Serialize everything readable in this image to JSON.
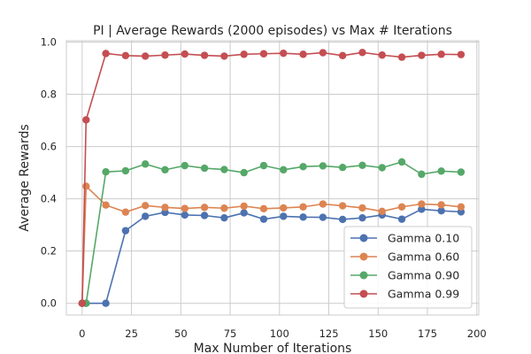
{
  "chart_data": {
    "type": "line",
    "title": "PI | Average Rewards (2000 episodes) vs Max # Iterations",
    "xlabel": "Max Number of Iterations",
    "ylabel": "Average Rewards",
    "xlim": [
      -8,
      201
    ],
    "ylim": [
      -0.045,
      1.005
    ],
    "xticks": [
      0,
      25,
      50,
      75,
      100,
      125,
      150,
      175,
      200
    ],
    "yticks": [
      0.0,
      0.2,
      0.4,
      0.6,
      0.8,
      1.0
    ],
    "xtick_labels": [
      "0",
      "25",
      "50",
      "75",
      "100",
      "125",
      "150",
      "175",
      "200"
    ],
    "ytick_labels": [
      "0.0",
      "0.2",
      "0.4",
      "0.6",
      "0.8",
      "1.0"
    ],
    "grid": true,
    "legend_position": "lower-right",
    "x": [
      0,
      2,
      12,
      22,
      32,
      42,
      52,
      62,
      72,
      82,
      92,
      102,
      112,
      122,
      132,
      142,
      152,
      162,
      172,
      182,
      192
    ],
    "series": [
      {
        "name": "Gamma 0.10",
        "color": "#4c72b0",
        "values": [
          0.0,
          0.0,
          0.0,
          0.278,
          0.333,
          0.348,
          0.338,
          0.336,
          0.327,
          0.346,
          0.322,
          0.333,
          0.33,
          0.329,
          0.321,
          0.327,
          0.338,
          0.322,
          0.36,
          0.354,
          0.35
        ]
      },
      {
        "name": "Gamma 0.60",
        "color": "#dd8452",
        "values": [
          0.0,
          0.448,
          0.376,
          0.349,
          0.374,
          0.367,
          0.363,
          0.367,
          0.364,
          0.372,
          0.362,
          0.365,
          0.369,
          0.38,
          0.373,
          0.365,
          0.352,
          0.369,
          0.38,
          0.377,
          0.369
        ]
      },
      {
        "name": "Gamma 0.90",
        "color": "#55a868",
        "values": [
          0.0,
          0.0,
          0.503,
          0.507,
          0.533,
          0.511,
          0.527,
          0.517,
          0.512,
          0.5,
          0.527,
          0.511,
          0.523,
          0.526,
          0.52,
          0.528,
          0.519,
          0.541,
          0.494,
          0.506,
          0.502
        ]
      },
      {
        "name": "Gamma 0.99",
        "color": "#c44e52",
        "values": [
          0.0,
          0.702,
          0.956,
          0.948,
          0.946,
          0.95,
          0.954,
          0.949,
          0.946,
          0.953,
          0.955,
          0.957,
          0.953,
          0.959,
          0.948,
          0.96,
          0.95,
          0.942,
          0.949,
          0.953,
          0.952
        ]
      }
    ]
  }
}
